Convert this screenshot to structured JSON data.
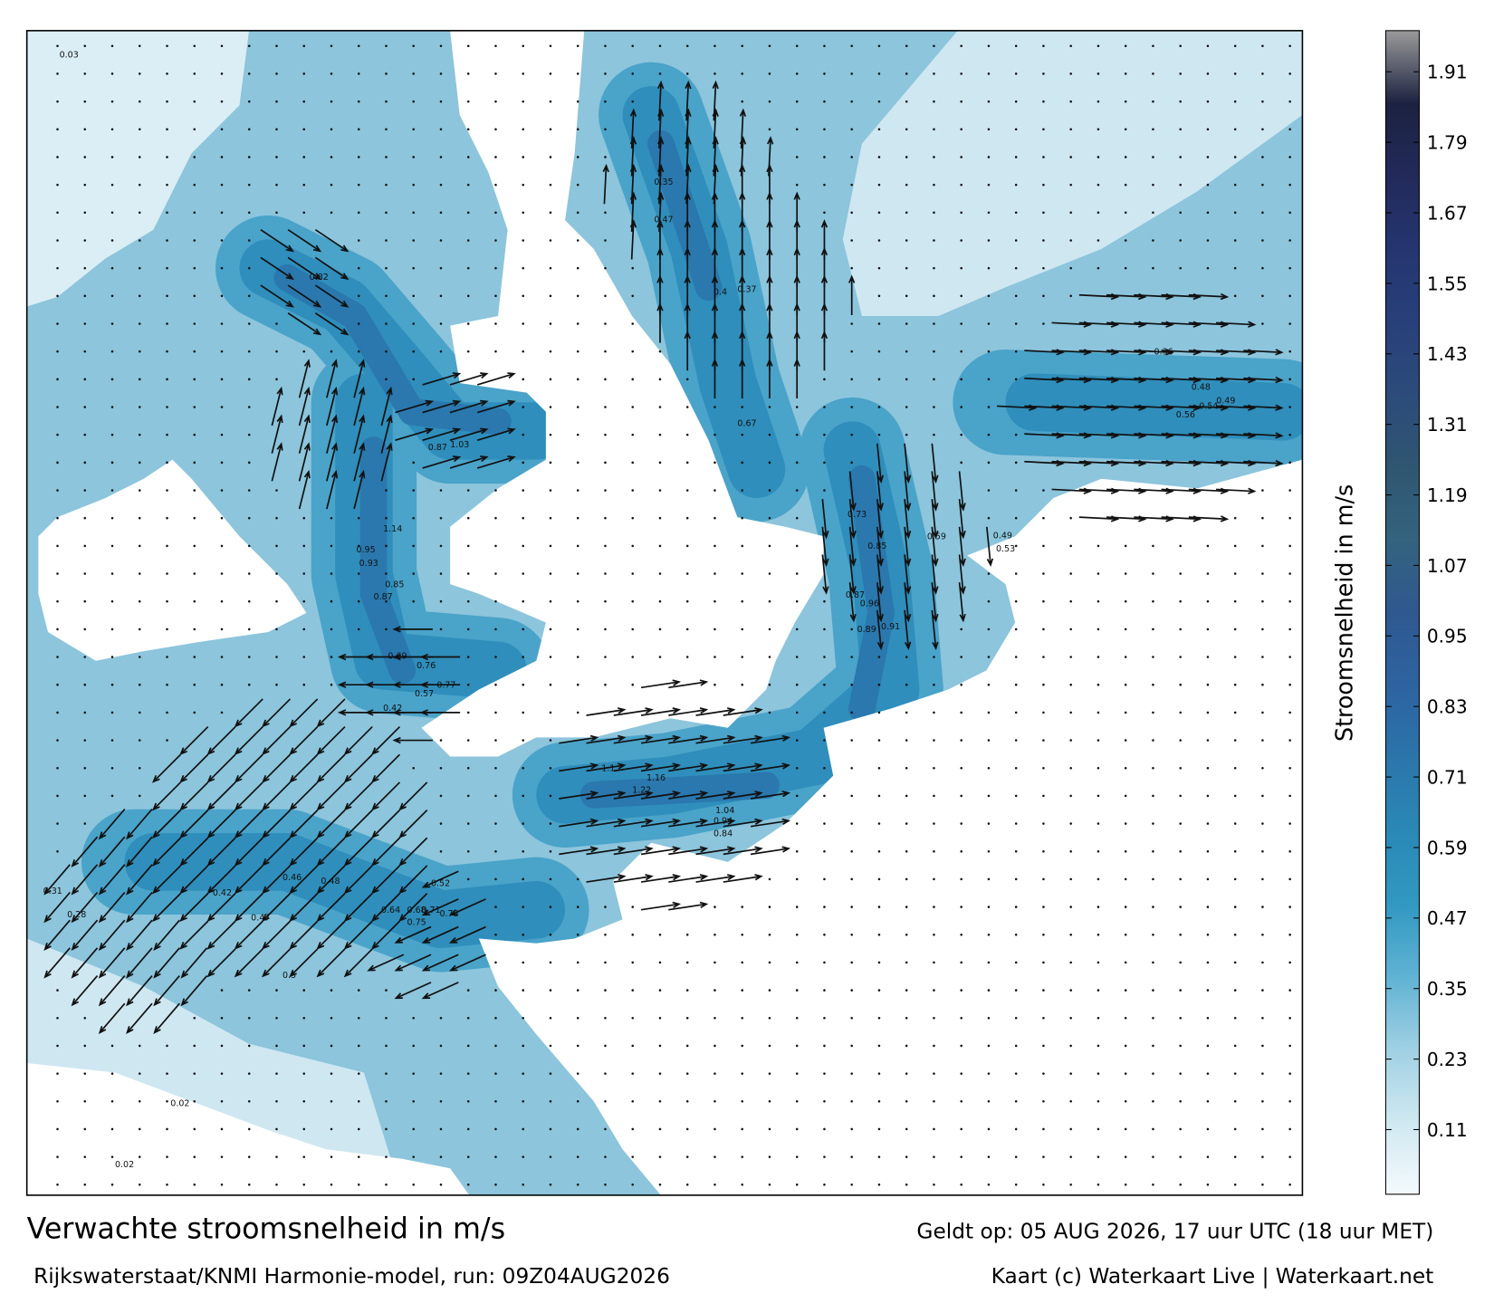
{
  "title": "Verwachte stroomsnelheid in m/s",
  "subtitle": "Rijkswaterstaat/KNMI Harmonie-model, run: 09Z04AUG2026",
  "valid_time": "Geldt op: 05 AUG 2026, 17 uur UTC (18 uur MET)",
  "credit": "Kaart (c) Waterkaart Live | Waterkaart.net",
  "map": {
    "speed_labels": [
      0.82,
      1.03,
      0.87,
      1.14,
      0.95,
      0.93,
      0.85,
      0.87,
      0.76,
      0.77,
      0.69,
      0.42,
      0.57,
      0.47,
      0.35,
      0.4,
      0.37,
      0.67,
      0.73,
      0.85,
      0.87,
      0.96,
      0.91,
      0.89,
      0.59,
      0.53,
      0.49,
      0.48,
      0.56,
      0.54,
      0.49,
      0.36,
      1.1,
      1.16,
      1.22,
      1.04,
      0.94,
      0.84,
      0.64,
      0.68,
      0.71,
      0.73,
      0.75,
      0.46,
      0.48,
      0.52,
      0.47,
      0.5,
      0.42,
      0.31,
      0.28,
      0.03,
      0.02,
      0.02
    ]
  },
  "colorbar": {
    "label": "Stroomsnelheid in m/s",
    "range": [
      0,
      1.98
    ],
    "ticks": [
      0.11,
      0.23,
      0.35,
      0.47,
      0.59,
      0.71,
      0.83,
      0.95,
      1.07,
      1.19,
      1.31,
      1.43,
      1.55,
      1.67,
      1.79,
      1.91
    ],
    "colors": [
      "#f4fafc",
      "#cfe8f1",
      "#9fd0e3",
      "#5fb2d3",
      "#3198c1",
      "#2a88b6",
      "#2b75ab",
      "#2d63a0",
      "#2f5890",
      "#33637e",
      "#2f5671",
      "#2c4b7a",
      "#28407a",
      "#253570",
      "#222a5a",
      "#1c2240",
      "#9a9a9a"
    ]
  }
}
